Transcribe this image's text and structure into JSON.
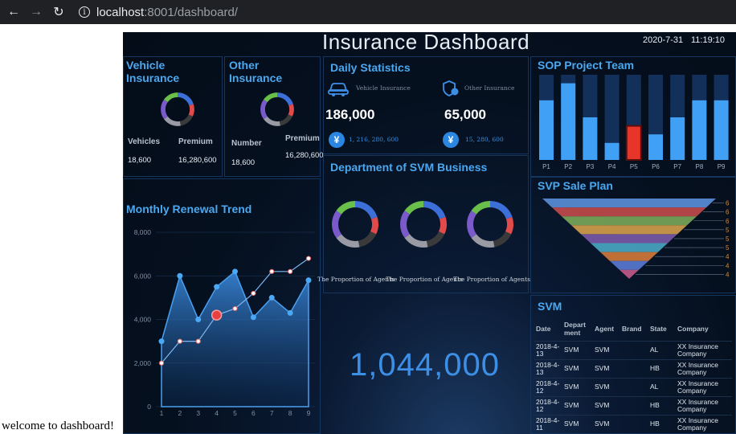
{
  "browser": {
    "url_host": "localhost",
    "url_rest": ":8001/dashboard/"
  },
  "welcome_text": "welcome to dashboard!",
  "header": {
    "title": "Insurance Dashboard",
    "date": "2020-7-31",
    "time": "11:19:10"
  },
  "vehicle_insurance": {
    "title": "Vehicle Insurance",
    "col1_label": "Vehicles",
    "col2_label": "Premium",
    "col1_value": "18,600",
    "col2_value": "16,280,600"
  },
  "other_insurance": {
    "title": "Other Insurance",
    "col1_label": "Number",
    "col2_label": "Premium",
    "col1_value": "18,600",
    "col2_value": "16,280,600"
  },
  "daily_statistics": {
    "title": "Daily Statistics",
    "vehicle_label": "Vehicle Insurance",
    "vehicle_count": "186,000",
    "vehicle_amount": "1, 216, 280, 600",
    "other_label": "Other Insurance",
    "other_count": "65,000",
    "other_amount": "15, 280, 600",
    "currency_symbol": "¥"
  },
  "svm_department": {
    "title": "Department of SVM Business",
    "captions": [
      "The Proportion of Agents",
      "The Proportion of Agents",
      "The Proportion of Agents"
    ]
  },
  "sop_team": {
    "title": "SOP Project Team",
    "highlight_color": "#e8352a",
    "bar_color": "#3fa0f5",
    "track_color": "#13305a"
  },
  "svp_sale_plan": {
    "title": "SVP Sale Plan",
    "right_labels": [
      "6",
      "6",
      "6",
      "5",
      "5",
      "5",
      "4",
      "4",
      "4"
    ]
  },
  "monthly_renewal": {
    "title": "Monthly Renewal Trend"
  },
  "total": {
    "value": "1,044,000"
  },
  "svm_table": {
    "title": "SVM",
    "headers": [
      "Date",
      "Department",
      "Agent",
      "Brand",
      "State",
      "Company"
    ],
    "rows": [
      [
        "2018-4-13",
        "SVM",
        "SVM",
        "",
        "AL",
        "XX Insurance Company"
      ],
      [
        "2018-4-13",
        "SVM",
        "SVM",
        "",
        "HB",
        "XX Insurance Company"
      ],
      [
        "2018-4-12",
        "SVM",
        "SVM",
        "",
        "AL",
        "XX Insurance Company"
      ],
      [
        "2018-4-12",
        "SVM",
        "SVM",
        "",
        "HB",
        "XX Insurance Company"
      ],
      [
        "2018-4-11",
        "SVM",
        "SVM",
        "",
        "HB",
        "XX Insurance Company"
      ]
    ]
  },
  "chart_data": [
    {
      "type": "bar",
      "title": "SOP Project Team",
      "categories": [
        "P1",
        "P2",
        "P3",
        "P4",
        "P5",
        "P6",
        "P7",
        "P8",
        "P9"
      ],
      "values": [
        70,
        90,
        50,
        20,
        40,
        30,
        50,
        70,
        70
      ],
      "ylim": [
        0,
        100
      ],
      "highlight_index": 4
    },
    {
      "type": "line",
      "title": "Monthly Renewal Trend",
      "x": [
        1,
        2,
        3,
        4,
        5,
        6,
        7,
        8,
        9
      ],
      "ylim": [
        0,
        8000
      ],
      "yticks": [
        "0",
        "2,000",
        "4,000",
        "6,000",
        "8,000"
      ],
      "series": [
        {
          "name": "area",
          "values": [
            3000,
            6000,
            4000,
            5500,
            6200,
            4100,
            5000,
            4300,
            5800
          ]
        },
        {
          "name": "line",
          "values": [
            2000,
            3000,
            3000,
            4200,
            4500,
            5200,
            6200,
            6200,
            6800
          ]
        }
      ],
      "highlight_point": {
        "x": 4,
        "y": 4200
      }
    },
    {
      "type": "funnel",
      "title": "SVP Sale Plan",
      "categories": [
        "1",
        "2",
        "3",
        "4",
        "5",
        "6",
        "7",
        "8",
        "9"
      ],
      "values": [
        9,
        8,
        7,
        6,
        5,
        4,
        3,
        2,
        1
      ],
      "colors": [
        "#5b8fd9",
        "#c44a4a",
        "#7aa85a",
        "#d4a04a",
        "#7a5aa8",
        "#4aa8c4",
        "#d47a3a",
        "#5a7ad4",
        "#c45a8a"
      ]
    },
    {
      "type": "pie",
      "title": "Donut segments",
      "values": [
        20,
        12,
        15,
        18,
        20,
        15
      ],
      "colors": [
        "#3d6fd8",
        "#e04a4a",
        "#3a3a3a",
        "#9a9aa5",
        "#7a5acb",
        "#6abf4b"
      ]
    }
  ]
}
